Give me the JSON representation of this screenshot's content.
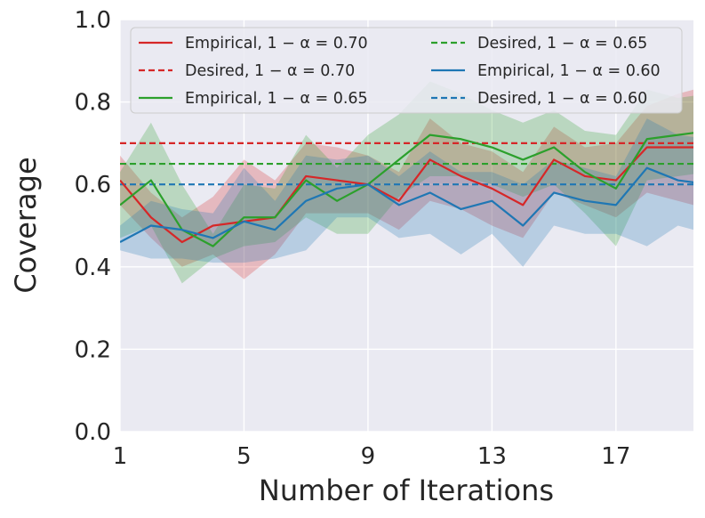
{
  "chart_data": {
    "type": "line",
    "xlabel": "Number of Iterations",
    "ylabel": "Coverage",
    "xlim": [
      1,
      19.5
    ],
    "ylim": [
      0.0,
      1.0
    ],
    "x_ticks": [
      1,
      5,
      9,
      13,
      17
    ],
    "x_tick_labels": [
      "1",
      "5",
      "9",
      "13",
      "17"
    ],
    "y_ticks": [
      0.0,
      0.2,
      0.4,
      0.6,
      0.8,
      1.0
    ],
    "y_tick_labels": [
      "0.0",
      "0.2",
      "0.4",
      "0.6",
      "0.8",
      "1.0"
    ],
    "grid": true,
    "legend_position": "top",
    "x": [
      1,
      2,
      3,
      4,
      5,
      6,
      7,
      8,
      9,
      10,
      11,
      12,
      13,
      14,
      15,
      16,
      17,
      18,
      19,
      20
    ],
    "series": [
      {
        "name": "Empirical, 1 − α = 0.70",
        "color": "#d62728",
        "style": "solid",
        "values": [
          0.61,
          0.52,
          0.46,
          0.5,
          0.51,
          0.52,
          0.62,
          0.61,
          0.6,
          0.56,
          0.66,
          0.62,
          0.59,
          0.55,
          0.66,
          0.62,
          0.61,
          0.69,
          0.69,
          0.69
        ],
        "lower": [
          0.55,
          0.47,
          0.4,
          0.43,
          0.37,
          0.43,
          0.53,
          0.53,
          0.53,
          0.49,
          0.56,
          0.54,
          0.5,
          0.47,
          0.58,
          0.55,
          0.52,
          0.58,
          0.56,
          0.54
        ],
        "upper": [
          0.67,
          0.58,
          0.52,
          0.57,
          0.66,
          0.61,
          0.7,
          0.69,
          0.67,
          0.63,
          0.76,
          0.7,
          0.68,
          0.63,
          0.74,
          0.69,
          0.7,
          0.79,
          0.82,
          0.84
        ]
      },
      {
        "name": "Desired, 1 − α = 0.70",
        "color": "#d62728",
        "style": "dashed",
        "constant": 0.7
      },
      {
        "name": "Empirical, 1 − α = 0.65",
        "color": "#2ca02c",
        "style": "solid",
        "values": [
          0.55,
          0.61,
          0.49,
          0.45,
          0.52,
          0.52,
          0.61,
          0.56,
          0.6,
          0.66,
          0.72,
          0.71,
          0.69,
          0.66,
          0.69,
          0.63,
          0.59,
          0.71,
          0.72,
          0.73
        ],
        "lower": [
          0.47,
          0.5,
          0.36,
          0.42,
          0.45,
          0.46,
          0.52,
          0.48,
          0.48,
          0.57,
          0.62,
          0.62,
          0.6,
          0.57,
          0.6,
          0.53,
          0.45,
          0.61,
          0.62,
          0.63
        ],
        "upper": [
          0.63,
          0.75,
          0.6,
          0.48,
          0.6,
          0.59,
          0.72,
          0.64,
          0.72,
          0.77,
          0.85,
          0.82,
          0.78,
          0.75,
          0.78,
          0.73,
          0.72,
          0.83,
          0.81,
          0.82
        ]
      },
      {
        "name": "Desired, 1 − α = 0.65",
        "color": "#2ca02c",
        "style": "dashed",
        "constant": 0.65
      },
      {
        "name": "Empirical, 1 − α = 0.60",
        "color": "#1f77b4",
        "style": "solid",
        "values": [
          0.46,
          0.5,
          0.49,
          0.47,
          0.51,
          0.49,
          0.56,
          0.59,
          0.6,
          0.55,
          0.58,
          0.54,
          0.56,
          0.5,
          0.58,
          0.56,
          0.55,
          0.64,
          0.61,
          0.6
        ],
        "lower": [
          0.44,
          0.42,
          0.42,
          0.41,
          0.41,
          0.42,
          0.44,
          0.52,
          0.52,
          0.47,
          0.48,
          0.43,
          0.48,
          0.4,
          0.5,
          0.48,
          0.48,
          0.45,
          0.5,
          0.48
        ],
        "upper": [
          0.5,
          0.56,
          0.54,
          0.53,
          0.64,
          0.56,
          0.67,
          0.66,
          0.67,
          0.62,
          0.68,
          0.63,
          0.63,
          0.6,
          0.66,
          0.64,
          0.62,
          0.76,
          0.72,
          0.71
        ]
      },
      {
        "name": "Desired, 1 − α = 0.60",
        "color": "#1f77b4",
        "style": "dashed",
        "constant": 0.6
      }
    ]
  }
}
